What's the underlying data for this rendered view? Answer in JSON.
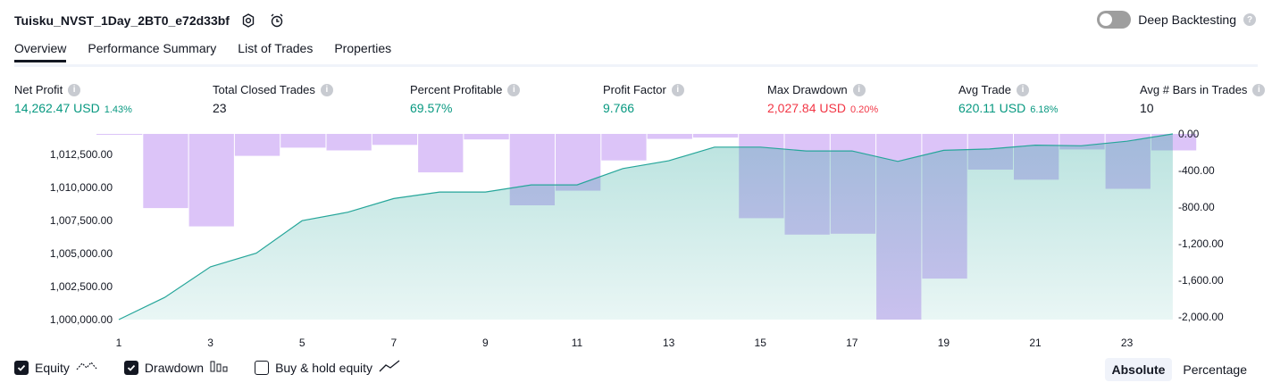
{
  "header": {
    "title": "Tuisku_NVST_1Day_2BT0_e72d33bf",
    "settings_icon": "gear-icon",
    "alert_icon": "alarm-clock-icon"
  },
  "deep_backtesting": {
    "label": "Deep Backtesting",
    "enabled": false
  },
  "tabs": [
    {
      "label": "Overview",
      "active": true
    },
    {
      "label": "Performance Summary",
      "active": false
    },
    {
      "label": "List of Trades",
      "active": false
    },
    {
      "label": "Properties",
      "active": false
    }
  ],
  "metrics": [
    {
      "label": "Net Profit",
      "value": "14,262.47 USD",
      "pct": "1.43%",
      "tone": "pos"
    },
    {
      "label": "Total Closed Trades",
      "value": "23",
      "pct": "",
      "tone": "neu"
    },
    {
      "label": "Percent Profitable",
      "value": "69.57%",
      "pct": "",
      "tone": "pos"
    },
    {
      "label": "Profit Factor",
      "value": "9.766",
      "pct": "",
      "tone": "pos"
    },
    {
      "label": "Max Drawdown",
      "value": "2,027.84 USD",
      "pct": "0.20%",
      "tone": "neg"
    },
    {
      "label": "Avg Trade",
      "value": "620.11 USD",
      "pct": "6.18%",
      "tone": "pos"
    },
    {
      "label": "Avg # Bars in Trades",
      "value": "10",
      "pct": "",
      "tone": "neu"
    }
  ],
  "chart_data": {
    "type": "line",
    "x": [
      1,
      2,
      3,
      4,
      5,
      6,
      7,
      8,
      9,
      10,
      11,
      12,
      13,
      14,
      15,
      16,
      17,
      18,
      19,
      20,
      21,
      22,
      23,
      24
    ],
    "x_ticks": [
      "1",
      "3",
      "5",
      "7",
      "9",
      "11",
      "13",
      "15",
      "17",
      "19",
      "21",
      "23"
    ],
    "series": [
      {
        "name": "Equity",
        "kind": "area",
        "color": "#26a69a",
        "values": [
          1000000,
          1001700,
          1004050,
          1005100,
          1007600,
          1008250,
          1009300,
          1009800,
          1009800,
          1010350,
          1010350,
          1011600,
          1012200,
          1013250,
          1013250,
          1012950,
          1012950,
          1012150,
          1013000,
          1013100,
          1013400,
          1013350,
          1013700,
          1014262
        ]
      },
      {
        "name": "Drawdown",
        "kind": "bar",
        "color": "#dcc4f8",
        "values": [
          0,
          -810,
          -1010,
          -240,
          -150,
          -180,
          -120,
          -420,
          -60,
          -780,
          -620,
          -290,
          -55,
          -40,
          -920,
          -1100,
          -1090,
          -2028,
          -1580,
          -390,
          -500,
          -170,
          -600,
          -180
        ]
      }
    ],
    "y_left": {
      "min": 1000000,
      "max": 1014262,
      "ticks": [
        "1,000,000.00",
        "1,002,500.00",
        "1,005,000.00",
        "1,007,500.00",
        "1,010,000.00",
        "1,012,500.00"
      ]
    },
    "y_right": {
      "min": -2028,
      "max": 0,
      "ticks": [
        "0.00",
        "-400.00",
        "-800.00",
        "-1,200.00",
        "-1,600.00",
        "-2,000.00"
      ]
    },
    "xlabel": "",
    "ylabel": ""
  },
  "legend": [
    {
      "label": "Equity",
      "checked": true,
      "icon": "equity-line-icon"
    },
    {
      "label": "Drawdown",
      "checked": true,
      "icon": "bars-icon"
    },
    {
      "label": "Buy & hold equity",
      "checked": false,
      "icon": "trend-line-icon"
    }
  ],
  "mode": {
    "absolute": "Absolute",
    "percentage": "Percentage",
    "active": "absolute"
  }
}
